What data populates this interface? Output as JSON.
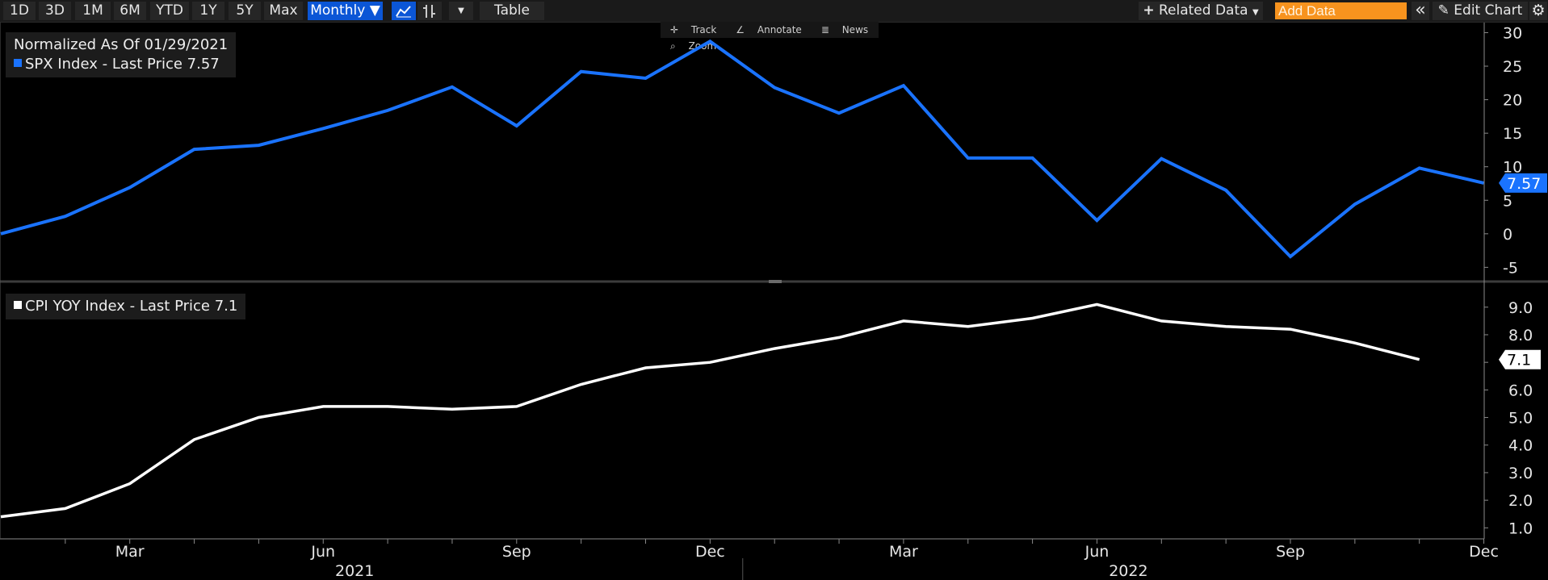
{
  "toolbar": {
    "periods": [
      "1D",
      "3D",
      "1M",
      "6M",
      "YTD",
      "1Y",
      "5Y",
      "Max"
    ],
    "frequency": "Monthly ▼",
    "table_label": "Table",
    "related_data": "Related Data",
    "add_data_placeholder": "Add Data",
    "collapse_glyph": "«",
    "edit_chart": "Edit Chart"
  },
  "sub_tools": {
    "track": "Track",
    "annotate": "Annotate",
    "news": "News",
    "zoom": "Zoom"
  },
  "colors": {
    "spx": "#1a73ff",
    "cpi": "#ffffff",
    "toolbar_active": "#0b56d6",
    "add_data": "#f7931e"
  },
  "chart_data": [
    {
      "type": "line",
      "title": "Normalized As Of 01/29/2021",
      "series": [
        {
          "name": "SPX Index - Last Price 7.57",
          "x": [
            "Jan 2021",
            "Feb 2021",
            "Mar 2021",
            "Apr 2021",
            "May 2021",
            "Jun 2021",
            "Jul 2021",
            "Aug 2021",
            "Sep 2021",
            "Oct 2021",
            "Nov 2021",
            "Dec 2021",
            "Jan 2022",
            "Feb 2022",
            "Mar 2022",
            "Apr 2022",
            "May 2022",
            "Jun 2022",
            "Jul 2022",
            "Aug 2022",
            "Sep 2022",
            "Oct 2022",
            "Nov 2022",
            "Dec 2022"
          ],
          "values": [
            0,
            2.6,
            6.9,
            12.6,
            13.2,
            15.7,
            18.4,
            21.9,
            16.1,
            24.2,
            23.2,
            28.7,
            21.8,
            18.0,
            22.1,
            11.3,
            11.3,
            2.0,
            11.2,
            6.5,
            -3.4,
            4.4,
            9.8,
            7.57
          ]
        }
      ],
      "last_price_label": "7.57",
      "yticks": [
        30,
        25,
        20,
        15,
        10,
        5,
        0,
        -5
      ],
      "ylim": [
        -7,
        31.5
      ]
    },
    {
      "type": "line",
      "series": [
        {
          "name": "CPI YOY Index - Last Price 7.1",
          "x": [
            "Jan 2021",
            "Feb 2021",
            "Mar 2021",
            "Apr 2021",
            "May 2021",
            "Jun 2021",
            "Jul 2021",
            "Aug 2021",
            "Sep 2021",
            "Oct 2021",
            "Nov 2021",
            "Dec 2021",
            "Jan 2022",
            "Feb 2022",
            "Mar 2022",
            "Apr 2022",
            "May 2022",
            "Jun 2022",
            "Jul 2022",
            "Aug 2022",
            "Sep 2022",
            "Oct 2022",
            "Nov 2022"
          ],
          "values": [
            1.4,
            1.7,
            2.6,
            4.2,
            5.0,
            5.4,
            5.4,
            5.3,
            5.4,
            6.2,
            6.8,
            7.0,
            7.5,
            7.9,
            8.5,
            8.3,
            8.6,
            9.1,
            8.5,
            8.3,
            8.2,
            7.7,
            7.1
          ]
        }
      ],
      "last_price_label": "7.1",
      "yticks": [
        "9.0",
        "8.0",
        "7.0",
        "6.0",
        "5.0",
        "4.0",
        "3.0",
        "2.0",
        "1.0"
      ],
      "ylim": [
        0.6,
        9.9
      ]
    }
  ],
  "x_axis": {
    "month_labels": [
      {
        "label": "Mar",
        "index": 2
      },
      {
        "label": "Jun",
        "index": 5
      },
      {
        "label": "Sep",
        "index": 8
      },
      {
        "label": "Dec",
        "index": 11
      },
      {
        "label": "Mar",
        "index": 14
      },
      {
        "label": "Jun",
        "index": 17
      },
      {
        "label": "Sep",
        "index": 20
      },
      {
        "label": "Dec",
        "index": 23
      }
    ],
    "year_labels": [
      {
        "label": "2021",
        "index": 5.5
      },
      {
        "label": "2022",
        "index": 17.5
      }
    ],
    "year_dividers": [
      11.5
    ],
    "gridline_indices": [
      1,
      2,
      3,
      4,
      5,
      6,
      7,
      8,
      9,
      10,
      11,
      12,
      13,
      14,
      15,
      16,
      17,
      18,
      19,
      20,
      21,
      22,
      23
    ]
  }
}
